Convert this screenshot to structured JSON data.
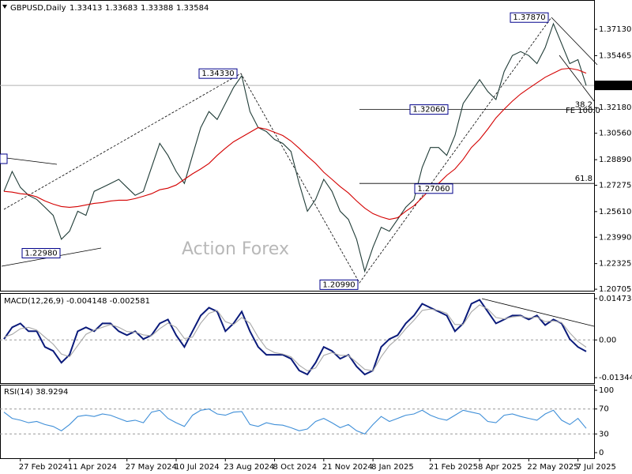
{
  "header": {
    "symbol": "GBPUSD,Daily",
    "ohlc": [
      1.33413,
      1.33683,
      1.33388,
      1.33584
    ]
  },
  "watermark": "Action Forex",
  "chart_data": [
    {
      "type": "line",
      "categories": [
        null,
        null,
        "27 Feb 2024",
        null,
        null,
        null,
        null,
        null,
        "11 Apr 2024",
        null,
        null,
        null,
        null,
        null,
        null,
        "27 May 2024",
        null,
        null,
        null,
        null,
        null,
        "10 Jul 2024",
        null,
        null,
        null,
        null,
        null,
        "23 Aug 2024",
        null,
        null,
        null,
        null,
        null,
        "8 Oct 2024",
        null,
        null,
        null,
        null,
        null,
        "21 Nov 2024",
        null,
        null,
        null,
        null,
        null,
        "8 Jan 2025",
        null,
        null,
        null,
        null,
        null,
        null,
        "21 Feb 2025",
        null,
        null,
        null,
        null,
        null,
        "8 Apr 2025",
        null,
        null,
        null,
        null,
        null,
        "22 May 2025",
        null,
        null,
        null,
        null,
        null,
        "7 Jul 2025",
        null
      ],
      "series": [
        {
          "color": "#1f3b36",
          "values": [
            1.2689,
            1.2815,
            1.2714,
            1.2664,
            1.2638,
            1.2588,
            1.2537,
            1.2386,
            1.2437,
            1.2563,
            1.2537,
            1.2689,
            1.2714,
            1.2739,
            1.2765,
            1.2714,
            1.2664,
            1.2689,
            1.284,
            1.2992,
            1.2916,
            1.2815,
            1.2739,
            1.2916,
            1.3092,
            1.3193,
            1.3143,
            1.3244,
            1.3345,
            1.342,
            1.3193,
            1.3092,
            1.3067,
            1.3017,
            1.2992,
            1.2941,
            1.2739,
            1.2563,
            1.2638,
            1.2765,
            1.2689,
            1.2563,
            1.2512,
            1.2386,
            1.2184,
            1.2336,
            1.2462,
            1.2437,
            1.2512,
            1.2588,
            1.2638,
            1.284,
            1.2966,
            1.2966,
            1.2916,
            1.3042,
            1.3244,
            1.332,
            1.3395,
            1.332,
            1.3269,
            1.3446,
            1.3547,
            1.3572,
            1.3547,
            1.3496,
            1.3597,
            1.3748,
            1.3622,
            1.3496,
            1.3521,
            1.3358
          ]
        },
        {
          "color": "#d40000",
          "values": [
            1.2689,
            1.2684,
            1.2674,
            1.2669,
            1.2654,
            1.2628,
            1.2608,
            1.2593,
            1.2588,
            1.2593,
            1.2603,
            1.2613,
            1.2618,
            1.2628,
            1.2633,
            1.2633,
            1.2643,
            1.2658,
            1.2674,
            1.2699,
            1.2709,
            1.2729,
            1.2765,
            1.28,
            1.283,
            1.2865,
            1.2916,
            1.2961,
            1.3002,
            1.3032,
            1.3062,
            1.3092,
            1.3082,
            1.3062,
            1.3042,
            1.3007,
            1.2961,
            1.2911,
            1.2865,
            1.281,
            1.2765,
            1.2719,
            1.2679,
            1.2628,
            1.2583,
            1.2548,
            1.2527,
            1.2512,
            1.2522,
            1.2563,
            1.2598,
            1.2649,
            1.2704,
            1.2739,
            1.279,
            1.283,
            1.2891,
            1.2966,
            1.3017,
            1.3082,
            1.3153,
            1.3208,
            1.3259,
            1.3304,
            1.334,
            1.3375,
            1.341,
            1.3436,
            1.3461,
            1.3466,
            1.3456,
            1.3436
          ]
        }
      ],
      "ylim": [
        1.2061,
        1.3898
      ],
      "yticks": [
        {
          "value": 1.3713,
          "label": "1.37130"
        },
        {
          "value": 1.35465,
          "label": "1.35465"
        },
        {
          "value": 1.3218,
          "label": "1.32180"
        },
        {
          "value": 1.3056,
          "label": "1.30560"
        },
        {
          "value": 1.2889,
          "label": "1.28890"
        },
        {
          "value": 1.27275,
          "label": "1.27275"
        },
        {
          "value": 1.2561,
          "label": "1.25610"
        },
        {
          "value": 1.2399,
          "label": "1.23990"
        },
        {
          "value": 1.22325,
          "label": "1.22325"
        },
        {
          "value": 1.20705,
          "label": "1.20705"
        }
      ],
      "last_price": {
        "value": 1.33584,
        "label": "1.33584"
      },
      "annotations": [
        {
          "value": 1.3433,
          "label": "1.34330"
        },
        {
          "value": 1.3787,
          "label": "1.37870"
        },
        {
          "value": 1.3206,
          "label": "1.32060"
        },
        {
          "value": 1.2706,
          "label": "1.27060"
        },
        {
          "value": 1.2298,
          "label": "1.22980"
        },
        {
          "value": 1.2099,
          "label": "1.20990"
        }
      ],
      "levels": [
        {
          "value": 1.3206,
          "label": "38.2"
        },
        {
          "value": 1.2739,
          "label": "61.8"
        }
      ],
      "fe_label": "FE 100.0"
    },
    {
      "type": "line",
      "title": "MACD(12,26,9) -0.004148 -0.002581",
      "series": [
        {
          "color": "#0a1a7a",
          "values": [
            0.0003,
            0.0045,
            0.0059,
            0.0031,
            0.0031,
            -0.0025,
            -0.0039,
            -0.0081,
            -0.0053,
            0.0031,
            0.0045,
            0.0031,
            0.0059,
            0.0059,
            0.0031,
            0.0017,
            0.0031,
            0.0003,
            0.0017,
            0.0059,
            0.0073,
            0.0017,
            -0.0025,
            0.0031,
            0.0087,
            0.0115,
            0.0101,
            0.0031,
            0.0059,
            0.0101,
            0.0031,
            -0.0025,
            -0.0053,
            -0.0053,
            -0.0053,
            -0.0067,
            -0.0109,
            -0.0123,
            -0.0081,
            -0.0025,
            -0.0039,
            -0.0067,
            -0.0053,
            -0.0095,
            -0.0123,
            -0.0109,
            -0.0025,
            0.0003,
            0.0017,
            0.0059,
            0.0087,
            0.0129,
            0.0115,
            0.0101,
            0.0087,
            0.0031,
            0.0059,
            0.0129,
            0.0143,
            0.0101,
            0.0059,
            0.0073,
            0.0087,
            0.0087,
            0.0073,
            0.0087,
            0.0053,
            0.0073,
            0.0059,
            0.0003,
            -0.0025,
            -0.0041
          ]
        },
        {
          "color": "#a8a8a8",
          "values": [
            0.001,
            0.002,
            0.004,
            0.0045,
            0.0035,
            0.001,
            -0.0015,
            -0.005,
            -0.006,
            -0.002,
            0.002,
            0.0035,
            0.0045,
            0.0055,
            0.0045,
            0.003,
            0.0028,
            0.0018,
            0.0015,
            0.004,
            0.006,
            0.0045,
            0.0005,
            0.001,
            0.006,
            0.0095,
            0.0105,
            0.0065,
            0.0055,
            0.008,
            0.006,
            0.001,
            -0.003,
            -0.0045,
            -0.005,
            -0.006,
            -0.009,
            -0.011,
            -0.01,
            -0.0055,
            -0.0045,
            -0.0055,
            -0.0055,
            -0.008,
            -0.0105,
            -0.011,
            -0.006,
            -0.002,
            0.0005,
            0.004,
            0.007,
            0.0105,
            0.011,
            0.0105,
            0.0095,
            0.0055,
            0.0055,
            0.01,
            0.0125,
            0.011,
            0.008,
            0.0075,
            0.0082,
            0.0085,
            0.0078,
            0.0082,
            0.0065,
            0.0068,
            0.0062,
            0.0025,
            -0.0005,
            -0.0026
          ]
        }
      ],
      "ylim": [
        -0.0154,
        0.0167
      ],
      "yticks": [
        0.014734,
        {
          "value": 0,
          "label": "0.00"
        },
        -0.013442
      ]
    },
    {
      "type": "line",
      "title": "RSI(14) 38.9294",
      "series": [
        {
          "color": "#3f8fd8",
          "values": [
            65,
            55,
            52,
            48,
            50,
            45,
            42,
            35,
            45,
            58,
            60,
            58,
            62,
            60,
            55,
            50,
            52,
            48,
            65,
            68,
            55,
            48,
            42,
            60,
            68,
            70,
            62,
            60,
            65,
            66,
            45,
            42,
            48,
            45,
            44,
            40,
            35,
            38,
            50,
            55,
            48,
            40,
            45,
            35,
            30,
            45,
            58,
            50,
            55,
            60,
            62,
            68,
            60,
            55,
            52,
            60,
            68,
            65,
            62,
            50,
            48,
            60,
            62,
            58,
            55,
            52,
            62,
            68,
            52,
            45,
            55,
            38.9294
          ]
        }
      ],
      "ylim": [
        -8.9,
        108.9
      ],
      "yticks": [
        100,
        70,
        30,
        0
      ]
    }
  ]
}
